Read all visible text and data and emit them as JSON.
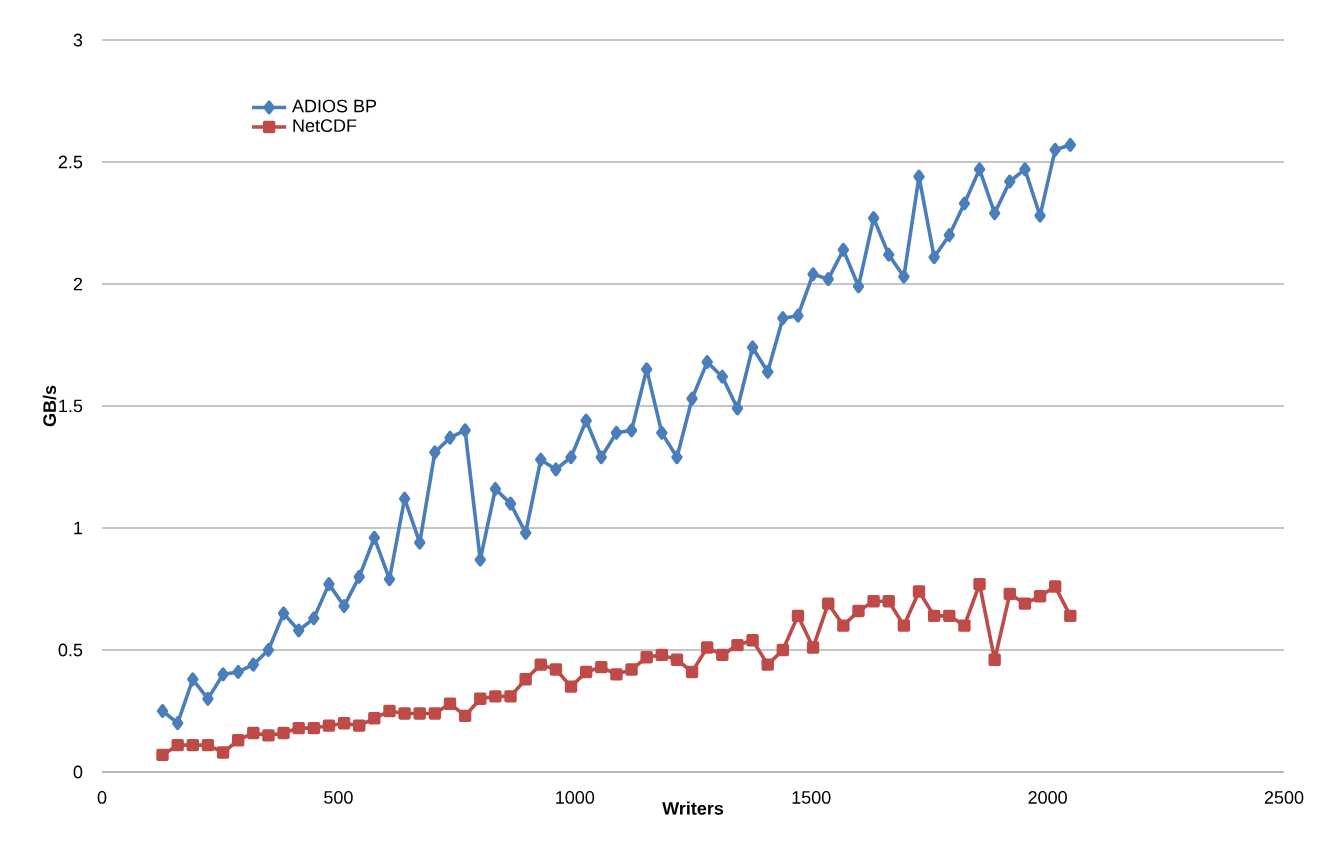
{
  "chart_data": {
    "type": "line",
    "xlabel": "Writers",
    "ylabel": "GB/s",
    "x": [
      128,
      160,
      192,
      224,
      256,
      288,
      320,
      352,
      384,
      416,
      448,
      480,
      512,
      544,
      576,
      608,
      640,
      672,
      704,
      736,
      768,
      800,
      832,
      864,
      896,
      928,
      960,
      992,
      1024,
      1056,
      1088,
      1120,
      1152,
      1184,
      1216,
      1248,
      1280,
      1312,
      1344,
      1376,
      1408,
      1440,
      1472,
      1504,
      1536,
      1568,
      1600,
      1632,
      1664,
      1696,
      1728,
      1760,
      1792,
      1824,
      1856,
      1888,
      1920,
      1952,
      1984,
      2016,
      2048
    ],
    "series": [
      {
        "name": "ADIOS BP",
        "color": "#4a7ebb",
        "marker": "diamond",
        "values": [
          0.25,
          0.2,
          0.38,
          0.3,
          0.4,
          0.41,
          0.44,
          0.5,
          0.65,
          0.58,
          0.63,
          0.77,
          0.68,
          0.8,
          0.96,
          0.79,
          1.12,
          0.94,
          1.31,
          1.37,
          1.4,
          0.87,
          1.16,
          1.1,
          0.98,
          1.28,
          1.24,
          1.29,
          1.44,
          1.29,
          1.39,
          1.4,
          1.65,
          1.39,
          1.29,
          1.53,
          1.68,
          1.62,
          1.49,
          1.74,
          1.64,
          1.86,
          1.87,
          2.04,
          2.02,
          2.14,
          1.99,
          2.27,
          2.12,
          2.03,
          2.44,
          2.11,
          2.2,
          2.33,
          2.47,
          2.29,
          2.42,
          2.47,
          2.28,
          2.55,
          2.57
        ]
      },
      {
        "name": "NetCDF",
        "color": "#be4b48",
        "marker": "square",
        "values": [
          0.07,
          0.11,
          0.11,
          0.11,
          0.08,
          0.13,
          0.16,
          0.15,
          0.16,
          0.18,
          0.18,
          0.19,
          0.2,
          0.19,
          0.22,
          0.25,
          0.24,
          0.24,
          0.24,
          0.28,
          0.23,
          0.3,
          0.31,
          0.31,
          0.38,
          0.44,
          0.42,
          0.35,
          0.41,
          0.43,
          0.4,
          0.42,
          0.47,
          0.48,
          0.46,
          0.41,
          0.51,
          0.48,
          0.52,
          0.54,
          0.44,
          0.5,
          0.64,
          0.51,
          0.69,
          0.6,
          0.66,
          0.7,
          0.7,
          0.6,
          0.74,
          0.64,
          0.64,
          0.6,
          0.77,
          0.46,
          0.73,
          0.69,
          0.72,
          0.76,
          0.64
        ]
      }
    ],
    "xlim": [
      0,
      2500
    ],
    "xticks": [
      0,
      500,
      1000,
      1500,
      2000,
      2500
    ],
    "ylim": [
      0,
      3
    ],
    "yticks": [
      0,
      0.5,
      1,
      1.5,
      2,
      2.5,
      3
    ],
    "grid": "y",
    "legend": "top left",
    "line_style": "solid"
  }
}
